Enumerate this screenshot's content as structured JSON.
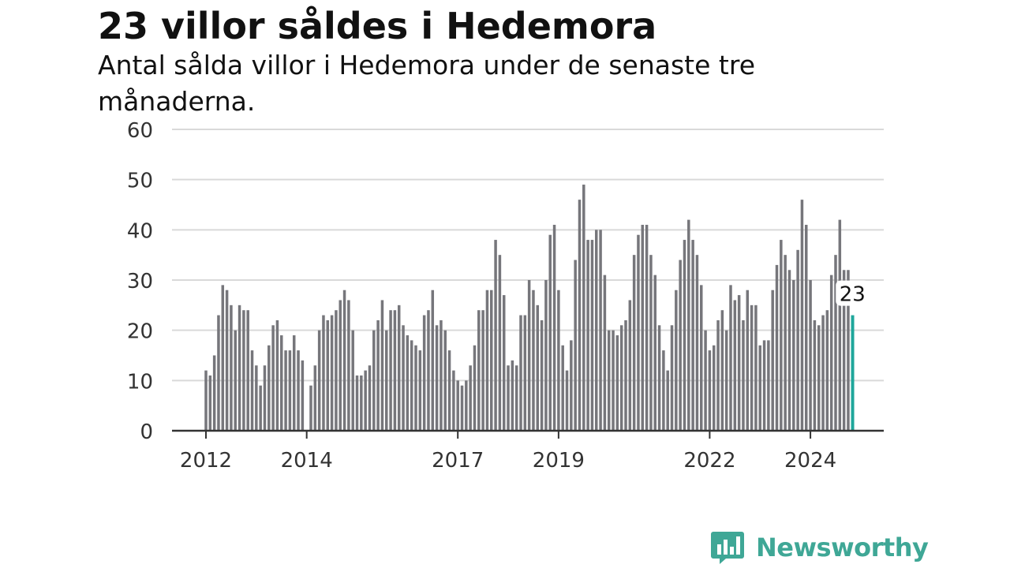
{
  "header": {
    "title": "23 villor såldes i Hedemora",
    "subtitle": "Antal sålda villor i Hedemora under de senaste tre månaderna."
  },
  "brand": {
    "name": "Newsworthy",
    "icon": "bar-chart-icon",
    "color": "#3fa796"
  },
  "colors": {
    "bar": "#76767b",
    "highlight": "#1fa79b",
    "grid": "#d9d9d9",
    "axis": "#333333",
    "text": "#333333"
  },
  "chart_data": {
    "type": "bar",
    "title": "23 villor såldes i Hedemora",
    "subtitle": "Antal sålda villor i Hedemora under de senaste tre månaderna.",
    "xlabel": "",
    "ylabel": "",
    "ylim": [
      0,
      60
    ],
    "yticks": [
      0,
      10,
      20,
      30,
      40,
      50,
      60
    ],
    "grid": true,
    "start": "2012-01",
    "xticks": [
      {
        "label": "2012",
        "month": "2012-01"
      },
      {
        "label": "2014",
        "month": "2014-01"
      },
      {
        "label": "2017",
        "month": "2017-01"
      },
      {
        "label": "2019",
        "month": "2019-01"
      },
      {
        "label": "2022",
        "month": "2022-01"
      },
      {
        "label": "2024",
        "month": "2024-01"
      }
    ],
    "values": [
      12,
      11,
      15,
      23,
      29,
      28,
      25,
      20,
      25,
      24,
      24,
      16,
      13,
      9,
      13,
      17,
      21,
      22,
      19,
      16,
      16,
      19,
      16,
      14,
      0,
      9,
      13,
      20,
      23,
      22,
      23,
      24,
      26,
      28,
      26,
      20,
      11,
      11,
      12,
      13,
      20,
      22,
      26,
      20,
      24,
      24,
      25,
      21,
      19,
      18,
      17,
      16,
      23,
      24,
      28,
      21,
      22,
      20,
      16,
      12,
      10,
      9,
      10,
      13,
      17,
      24,
      24,
      28,
      28,
      38,
      35,
      27,
      13,
      14,
      13,
      23,
      23,
      30,
      28,
      25,
      22,
      30,
      39,
      41,
      28,
      17,
      12,
      18,
      34,
      46,
      49,
      38,
      38,
      40,
      40,
      31,
      20,
      20,
      19,
      21,
      22,
      26,
      35,
      39,
      41,
      41,
      35,
      31,
      21,
      16,
      12,
      21,
      28,
      34,
      38,
      42,
      38,
      35,
      29,
      20,
      16,
      17,
      22,
      24,
      20,
      29,
      26,
      27,
      22,
      28,
      25,
      25,
      17,
      18,
      18,
      28,
      33,
      38,
      35,
      32,
      30,
      36,
      46,
      41,
      30,
      22,
      21,
      23,
      24,
      31,
      35,
      42,
      32,
      32,
      23
    ],
    "highlight": {
      "month": "2024-11",
      "value": 23,
      "label": "23"
    }
  }
}
